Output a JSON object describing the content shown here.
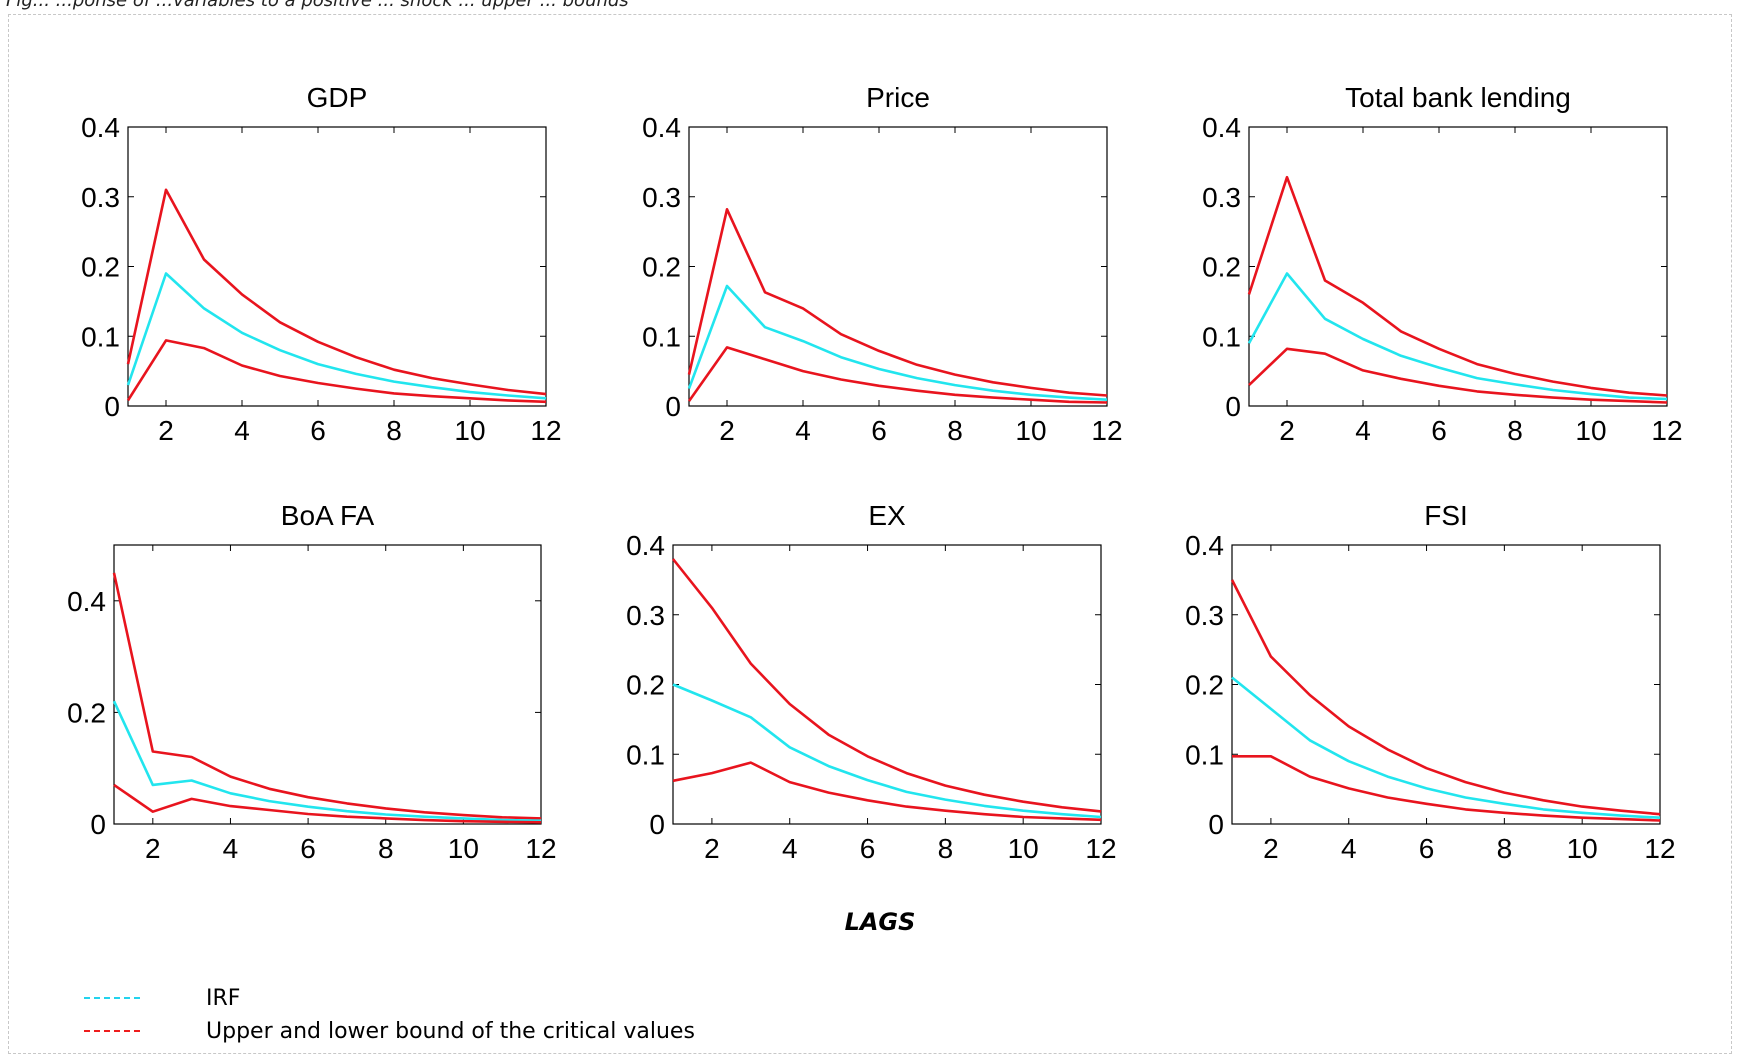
{
  "figure": {
    "caption_fragment": "Fig... ...ponse of ...variables to a positive ... shock ... upper ... bounds",
    "x_axis_label": "LAGS"
  },
  "legend": [
    {
      "label": "IRF",
      "color": "#22d3ee",
      "style": "dashed"
    },
    {
      "label": "Upper and lower bound of the critical values",
      "color": "#ee1c1c",
      "style": "dashed"
    }
  ],
  "colors": {
    "irf": "#22e5ee",
    "bounds": "#e8141e"
  },
  "chart_data": [
    {
      "type": "line",
      "title": "GDP",
      "x": [
        1,
        2,
        3,
        4,
        5,
        6,
        7,
        8,
        9,
        10,
        11,
        12
      ],
      "xlim": [
        1,
        12
      ],
      "xticks": [
        2,
        4,
        6,
        8,
        10,
        12
      ],
      "ylim": [
        0,
        0.4
      ],
      "yticks": [
        0,
        0.1,
        0.2,
        0.3,
        0.4
      ],
      "ytick_labels": [
        "0",
        "0.1",
        "0.2",
        "0.3",
        "0.4"
      ],
      "series": [
        {
          "role": "upper",
          "values": [
            0.06,
            0.31,
            0.21,
            0.16,
            0.12,
            0.092,
            0.07,
            0.052,
            0.04,
            0.031,
            0.023,
            0.017
          ]
        },
        {
          "role": "irf",
          "values": [
            0.03,
            0.19,
            0.14,
            0.105,
            0.08,
            0.06,
            0.046,
            0.035,
            0.027,
            0.02,
            0.015,
            0.011
          ]
        },
        {
          "role": "lower",
          "values": [
            0.008,
            0.094,
            0.083,
            0.058,
            0.043,
            0.033,
            0.025,
            0.018,
            0.014,
            0.011,
            0.008,
            0.006
          ]
        }
      ]
    },
    {
      "type": "line",
      "title": "Price",
      "x": [
        1,
        2,
        3,
        4,
        5,
        6,
        7,
        8,
        9,
        10,
        11,
        12
      ],
      "xlim": [
        1,
        12
      ],
      "xticks": [
        2,
        4,
        6,
        8,
        10,
        12
      ],
      "ylim": [
        0,
        0.4
      ],
      "yticks": [
        0,
        0.1,
        0.2,
        0.3,
        0.4
      ],
      "ytick_labels": [
        "0",
        "0.1",
        "0.2",
        "0.3",
        "0.4"
      ],
      "series": [
        {
          "role": "upper",
          "values": [
            0.045,
            0.282,
            0.163,
            0.14,
            0.103,
            0.079,
            0.059,
            0.045,
            0.034,
            0.026,
            0.019,
            0.015
          ]
        },
        {
          "role": "irf",
          "values": [
            0.025,
            0.172,
            0.113,
            0.093,
            0.07,
            0.053,
            0.04,
            0.03,
            0.022,
            0.016,
            0.012,
            0.009
          ]
        },
        {
          "role": "lower",
          "values": [
            0.007,
            0.084,
            0.067,
            0.05,
            0.038,
            0.029,
            0.022,
            0.016,
            0.012,
            0.009,
            0.006,
            0.005
          ]
        }
      ]
    },
    {
      "type": "line",
      "title": "Total bank lending",
      "x": [
        1,
        2,
        3,
        4,
        5,
        6,
        7,
        8,
        9,
        10,
        11,
        12
      ],
      "xlim": [
        1,
        12
      ],
      "xticks": [
        2,
        4,
        6,
        8,
        10,
        12
      ],
      "ylim": [
        0,
        0.4
      ],
      "yticks": [
        0,
        0.1,
        0.2,
        0.3,
        0.4
      ],
      "ytick_labels": [
        "0",
        "0.1",
        "0.2",
        "0.3",
        "0.4"
      ],
      "series": [
        {
          "role": "upper",
          "values": [
            0.16,
            0.328,
            0.18,
            0.148,
            0.107,
            0.082,
            0.06,
            0.046,
            0.035,
            0.026,
            0.019,
            0.015
          ]
        },
        {
          "role": "irf",
          "values": [
            0.09,
            0.19,
            0.125,
            0.096,
            0.072,
            0.055,
            0.04,
            0.031,
            0.023,
            0.017,
            0.012,
            0.01
          ]
        },
        {
          "role": "lower",
          "values": [
            0.03,
            0.082,
            0.075,
            0.051,
            0.039,
            0.029,
            0.021,
            0.016,
            0.012,
            0.009,
            0.007,
            0.005
          ]
        }
      ]
    },
    {
      "type": "line",
      "title": "BoA FA",
      "x": [
        1,
        2,
        3,
        4,
        5,
        6,
        7,
        8,
        9,
        10,
        11,
        12
      ],
      "xlim": [
        1,
        12
      ],
      "xticks": [
        2,
        4,
        6,
        8,
        10,
        12
      ],
      "ylim": [
        0,
        0.5
      ],
      "yticks": [
        0,
        0.2,
        0.4
      ],
      "ytick_labels": [
        "0",
        "0.2",
        "0.4"
      ],
      "series": [
        {
          "role": "upper",
          "values": [
            0.45,
            0.13,
            0.12,
            0.085,
            0.063,
            0.048,
            0.037,
            0.028,
            0.021,
            0.016,
            0.012,
            0.01
          ]
        },
        {
          "role": "irf",
          "values": [
            0.22,
            0.07,
            0.078,
            0.055,
            0.041,
            0.031,
            0.023,
            0.017,
            0.013,
            0.01,
            0.007,
            0.006
          ]
        },
        {
          "role": "lower",
          "values": [
            0.07,
            0.022,
            0.045,
            0.032,
            0.025,
            0.018,
            0.013,
            0.01,
            0.007,
            0.005,
            0.004,
            0.003
          ]
        }
      ]
    },
    {
      "type": "line",
      "title": "EX",
      "x": [
        1,
        2,
        3,
        4,
        5,
        6,
        7,
        8,
        9,
        10,
        11,
        12
      ],
      "xlim": [
        1,
        12
      ],
      "xticks": [
        2,
        4,
        6,
        8,
        10,
        12
      ],
      "ylim": [
        0,
        0.4
      ],
      "yticks": [
        0,
        0.1,
        0.2,
        0.3,
        0.4
      ],
      "ytick_labels": [
        "0",
        "0.1",
        "0.2",
        "0.3",
        "0.4"
      ],
      "series": [
        {
          "role": "upper",
          "values": [
            0.38,
            0.31,
            0.23,
            0.172,
            0.128,
            0.097,
            0.073,
            0.055,
            0.042,
            0.032,
            0.024,
            0.018
          ]
        },
        {
          "role": "irf",
          "values": [
            0.2,
            0.177,
            0.153,
            0.11,
            0.083,
            0.063,
            0.046,
            0.035,
            0.026,
            0.019,
            0.014,
            0.01
          ]
        },
        {
          "role": "lower",
          "values": [
            0.062,
            0.073,
            0.088,
            0.06,
            0.045,
            0.034,
            0.025,
            0.019,
            0.014,
            0.01,
            0.008,
            0.006
          ]
        }
      ]
    },
    {
      "type": "line",
      "title": "FSI",
      "x": [
        1,
        2,
        3,
        4,
        5,
        6,
        7,
        8,
        9,
        10,
        11,
        12
      ],
      "xlim": [
        1,
        12
      ],
      "xticks": [
        2,
        4,
        6,
        8,
        10,
        12
      ],
      "ylim": [
        0,
        0.4
      ],
      "yticks": [
        0,
        0.1,
        0.2,
        0.3,
        0.4
      ],
      "ytick_labels": [
        "0",
        "0.1",
        "0.2",
        "0.3",
        "0.4"
      ],
      "series": [
        {
          "role": "upper",
          "values": [
            0.35,
            0.24,
            0.185,
            0.14,
            0.107,
            0.08,
            0.06,
            0.045,
            0.034,
            0.025,
            0.019,
            0.014
          ]
        },
        {
          "role": "irf",
          "values": [
            0.21,
            0.165,
            0.12,
            0.09,
            0.068,
            0.051,
            0.038,
            0.029,
            0.021,
            0.016,
            0.012,
            0.009
          ]
        },
        {
          "role": "lower",
          "values": [
            0.097,
            0.097,
            0.068,
            0.051,
            0.038,
            0.029,
            0.021,
            0.016,
            0.012,
            0.009,
            0.007,
            0.005
          ]
        }
      ]
    }
  ]
}
